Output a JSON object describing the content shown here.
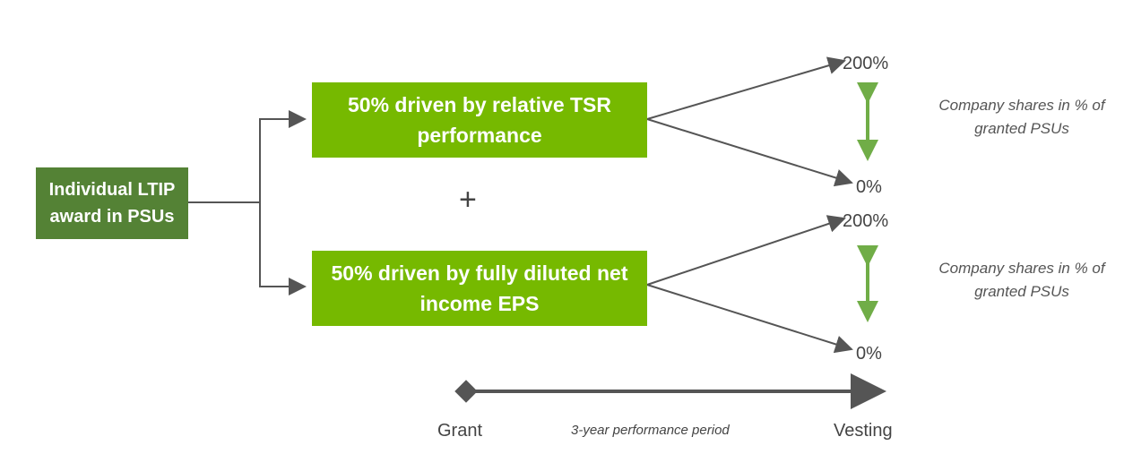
{
  "source": {
    "label": "Individual LTIP award in PSUs"
  },
  "components": [
    {
      "label": "50% driven by relative TSR performance",
      "max": "200%",
      "min": "0%",
      "note": "Company shares in % of granted PSUs"
    },
    {
      "label": "50% driven by fully diluted net income EPS",
      "max": "200%",
      "min": "0%",
      "note": "Company shares in % of granted PSUs"
    }
  ],
  "plus": "+",
  "timeline": {
    "start": "Grant",
    "period": "3-year performance period",
    "end": "Vesting"
  }
}
